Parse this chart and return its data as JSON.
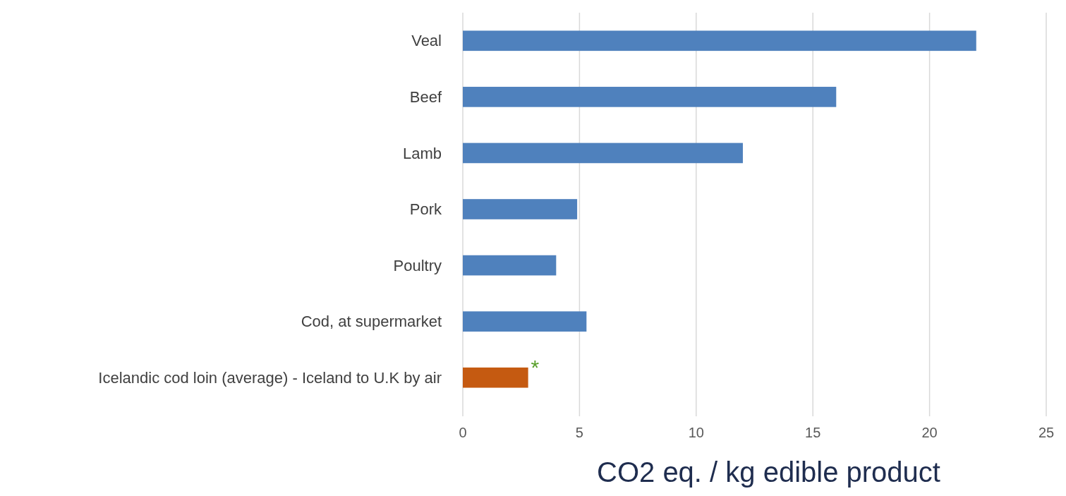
{
  "chart_data": {
    "type": "bar",
    "orientation": "horizontal",
    "xlabel": "CO2 eq. / kg edible product",
    "categories": [
      "Veal",
      "Beef",
      "Lamb",
      "Pork",
      "Poultry",
      "Cod, at supermarket",
      "Icelandic cod loin (average) - Iceland to U.K by air"
    ],
    "values": [
      22,
      16,
      12,
      4.9,
      4,
      5.3,
      2.8
    ],
    "colors": [
      "#4f81bd",
      "#4f81bd",
      "#4f81bd",
      "#4f81bd",
      "#4f81bd",
      "#4f81bd",
      "#c55a11"
    ],
    "xlim": [
      0,
      25
    ],
    "xticks": [
      0,
      5,
      10,
      15,
      20,
      25
    ],
    "grid": "x",
    "annotations": [
      {
        "text": "*",
        "x": 2.8,
        "y": "Icelandic cod loin (average) - Iceland to U.K by air"
      }
    ]
  }
}
